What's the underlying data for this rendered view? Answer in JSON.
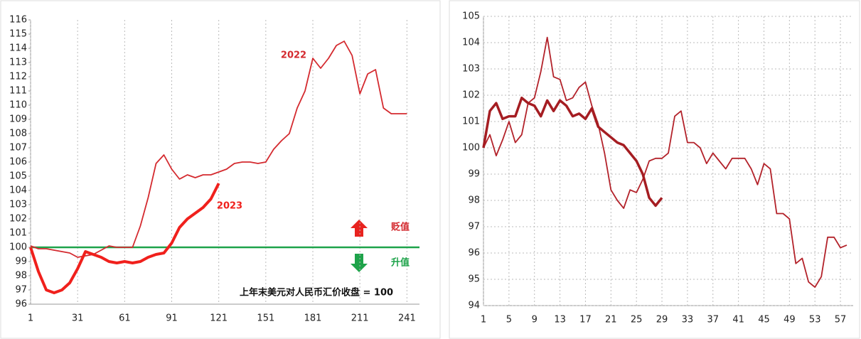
{
  "chart_data": [
    {
      "type": "line",
      "x": [
        1,
        6,
        11,
        16,
        21,
        26,
        31,
        36,
        41,
        46,
        51,
        56,
        61,
        66,
        71,
        76,
        81,
        86,
        91,
        96,
        101,
        106,
        111,
        116,
        121,
        126,
        131,
        136,
        141,
        146,
        151,
        156,
        161,
        166,
        171,
        176,
        181,
        186,
        191,
        196,
        201,
        206,
        211,
        216,
        221,
        226,
        231,
        236,
        241
      ],
      "series": [
        {
          "name": "2022",
          "color": "#d42a2f",
          "width": 1.8,
          "values": [
            100.1,
            99.9,
            99.9,
            99.8,
            99.7,
            99.6,
            99.3,
            99.4,
            99.5,
            99.8,
            100.1,
            100.0,
            100.0,
            100.0,
            101.5,
            103.5,
            105.9,
            106.5,
            105.5,
            104.8,
            105.1,
            104.9,
            105.1,
            105.1,
            105.3,
            105.5,
            105.9,
            106.0,
            106.0,
            105.9,
            106.0,
            106.9,
            107.5,
            108.0,
            109.8,
            111.0,
            113.3,
            112.6,
            113.3,
            114.2,
            114.5,
            113.5,
            110.8,
            112.2,
            112.5,
            109.8,
            109.4,
            109.4,
            109.4
          ]
        },
        {
          "name": "2023",
          "color": "#f0201c",
          "width": 4,
          "values": [
            100.0,
            98.3,
            97.0,
            96.8,
            97.0,
            97.5,
            98.5,
            99.7,
            99.5,
            99.3,
            99.0,
            98.9,
            99.0,
            98.9,
            99.0,
            99.3,
            99.5,
            99.6,
            100.3,
            101.4,
            102.0,
            102.4,
            102.8,
            103.4,
            104.5,
            null,
            null,
            null,
            null,
            null,
            null,
            null,
            null,
            null,
            null,
            null,
            null,
            null,
            null,
            null,
            null,
            null,
            null,
            null,
            null,
            null,
            null,
            null,
            null
          ]
        }
      ],
      "xlim": [
        1,
        249
      ],
      "ylim": [
        96,
        116
      ],
      "xticks": [
        1,
        31,
        61,
        91,
        121,
        151,
        181,
        211,
        241
      ],
      "yticks": [
        96,
        97,
        98,
        99,
        100,
        101,
        102,
        103,
        104,
        105,
        106,
        107,
        108,
        109,
        110,
        111,
        112,
        113,
        114,
        115,
        116
      ],
      "xgrid": true,
      "ygrid": false,
      "hline": {
        "value": 100,
        "color": "#1ea34a"
      },
      "annotations": [
        "贬值",
        "升值",
        "上年末美元对人民币汇价收盘 = 100"
      ]
    },
    {
      "type": "line",
      "x": [
        1,
        2,
        3,
        4,
        5,
        6,
        7,
        8,
        9,
        10,
        11,
        12,
        13,
        14,
        15,
        16,
        17,
        18,
        19,
        20,
        21,
        22,
        23,
        24,
        25,
        26,
        27,
        28,
        29,
        30,
        31,
        32,
        33,
        34,
        35,
        36,
        37,
        38,
        39,
        40,
        41,
        42,
        43,
        44,
        45,
        46,
        47,
        48,
        49,
        50,
        51,
        52,
        53,
        54,
        55,
        56,
        57,
        58
      ],
      "series": [
        {
          "color": "#b3222a",
          "width": 1.8,
          "values": [
            100.0,
            100.5,
            99.7,
            100.3,
            101.0,
            100.2,
            100.5,
            101.7,
            101.9,
            102.9,
            104.2,
            102.7,
            102.6,
            101.8,
            101.9,
            102.3,
            102.5,
            101.6,
            100.9,
            99.8,
            98.4,
            98.0,
            97.7,
            98.4,
            98.3,
            98.8,
            99.5,
            99.6,
            99.6,
            99.8,
            101.2,
            101.4,
            100.2,
            100.2,
            100.0,
            99.4,
            99.8,
            99.5,
            99.2,
            99.6,
            99.6,
            99.6,
            99.2,
            98.6,
            99.4,
            99.2,
            97.5,
            97.5,
            97.3,
            95.6,
            95.8,
            94.9,
            94.7,
            95.1,
            96.6,
            96.6,
            96.2,
            96.3
          ]
        },
        {
          "color": "#a51d22",
          "width": 3.5,
          "values": [
            100.0,
            101.4,
            101.7,
            101.1,
            101.2,
            101.2,
            101.9,
            101.7,
            101.6,
            101.2,
            101.8,
            101.4,
            101.8,
            101.6,
            101.2,
            101.3,
            101.1,
            101.5,
            100.8,
            100.6,
            100.4,
            100.2,
            100.1,
            99.8,
            99.5,
            99.0,
            98.1,
            97.8,
            98.1,
            null,
            null,
            null,
            null,
            null,
            null,
            null,
            null,
            null,
            null,
            null,
            null,
            null,
            null,
            null,
            null,
            null,
            null,
            null,
            null,
            null,
            null,
            null,
            null,
            null,
            null,
            null,
            null,
            null
          ]
        }
      ],
      "xlim": [
        1,
        59
      ],
      "ylim": [
        94,
        105
      ],
      "xticks": [
        1,
        5,
        9,
        13,
        17,
        21,
        25,
        29,
        33,
        37,
        41,
        45,
        49,
        53,
        57
      ],
      "yticks": [
        94,
        95,
        96,
        97,
        98,
        99,
        100,
        101,
        102,
        103,
        104,
        105
      ],
      "xgrid": true,
      "ygrid": true
    }
  ]
}
